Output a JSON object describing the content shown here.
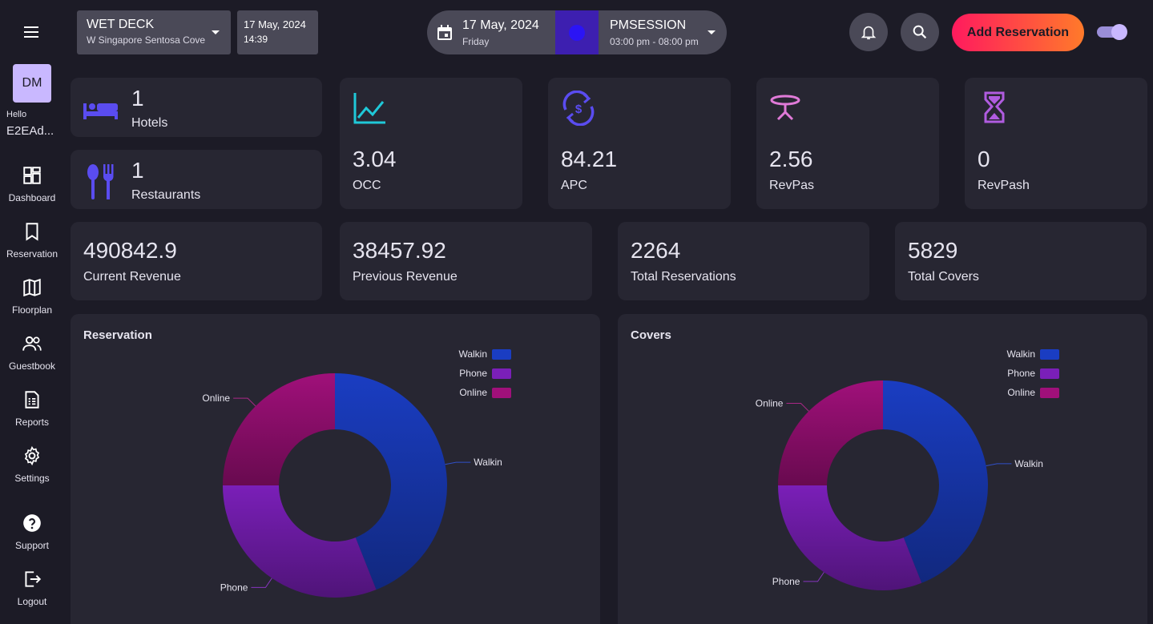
{
  "sidebar": {
    "avatar_initials": "DM",
    "hello": "Hello",
    "user_name": "E2EAd...",
    "items": [
      {
        "label": "Dashboard",
        "icon": "dashboard-icon"
      },
      {
        "label": "Reservation",
        "icon": "bookmark-icon"
      },
      {
        "label": "Floorplan",
        "icon": "map-icon"
      },
      {
        "label": "Guestbook",
        "icon": "people-icon"
      },
      {
        "label": "Reports",
        "icon": "report-icon"
      },
      {
        "label": "Settings",
        "icon": "gear-icon"
      },
      {
        "label": "Support",
        "icon": "help-icon"
      },
      {
        "label": "Logout",
        "icon": "logout-icon"
      }
    ]
  },
  "header": {
    "venue": {
      "name": "WET DECK",
      "location": "W Singapore Sentosa Cove"
    },
    "current": {
      "date": "17 May, 2024",
      "time": "14:39"
    },
    "selected_date": {
      "date": "17 May, 2024",
      "day": "Friday"
    },
    "session": {
      "name": "PMSESSION",
      "time": "03:00 pm - 08:00 pm",
      "color": "#2b14f5"
    },
    "add_reservation": "Add Reservation",
    "toggle_on": true
  },
  "summary": {
    "hotels": {
      "value": "1",
      "label": "Hotels",
      "icon": "bed-icon"
    },
    "restaurants": {
      "value": "1",
      "label": "Restaurants",
      "icon": "cutlery-icon"
    }
  },
  "stats": [
    {
      "value": "3.04",
      "label": "OCC",
      "icon": "trend-chart-icon",
      "color": "#1fc8d8"
    },
    {
      "value": "84.21",
      "label": "APC",
      "icon": "currency-exchange-icon",
      "color": "#5a4cf0"
    },
    {
      "value": "2.56",
      "label": "RevPas",
      "icon": "table-icon",
      "color": "#e07ad8"
    },
    {
      "value": "0",
      "label": "RevPash",
      "icon": "hourglass-icon",
      "color": "#b05ce0"
    }
  ],
  "revenue": [
    {
      "value": "490842.9",
      "label": "Current Revenue"
    },
    {
      "value": "38457.92",
      "label": "Previous Revenue"
    },
    {
      "value": "2264",
      "label": "Total Reservations"
    },
    {
      "value": "5829",
      "label": "Total Covers"
    }
  ],
  "chart_data": [
    {
      "type": "pie",
      "title": "Reservation",
      "donut": true,
      "legend_position": "top-right",
      "categories": [
        "Walkin",
        "Phone",
        "Online"
      ],
      "values": [
        44,
        31,
        25
      ],
      "colors": [
        "#1a3dc2",
        "#7a1fb8",
        "#a0107a"
      ]
    },
    {
      "type": "pie",
      "title": "Covers",
      "donut": true,
      "legend_position": "top-right",
      "categories": [
        "Walkin",
        "Phone",
        "Online"
      ],
      "values": [
        44,
        31,
        25
      ],
      "colors": [
        "#1a3dc2",
        "#7a1fb8",
        "#a0107a"
      ]
    }
  ]
}
